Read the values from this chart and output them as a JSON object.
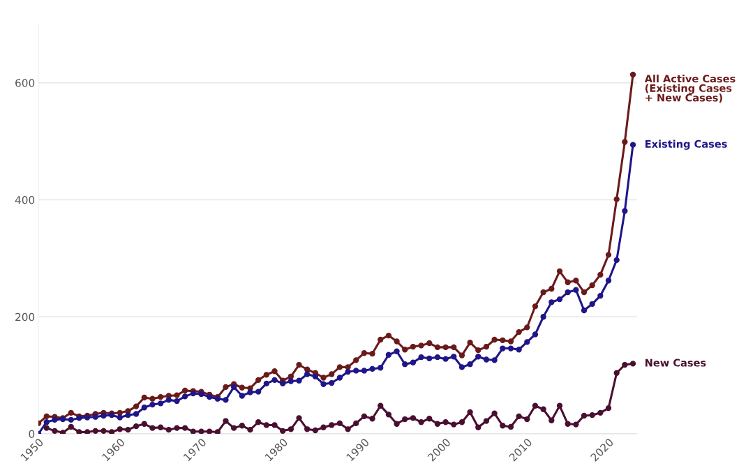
{
  "chart_data": {
    "type": "line",
    "x": [
      1950,
      1951,
      1952,
      1953,
      1954,
      1955,
      1956,
      1957,
      1958,
      1959,
      1960,
      1961,
      1962,
      1963,
      1964,
      1965,
      1966,
      1967,
      1968,
      1969,
      1970,
      1971,
      1972,
      1973,
      1974,
      1975,
      1976,
      1977,
      1978,
      1979,
      1980,
      1981,
      1982,
      1983,
      1984,
      1985,
      1986,
      1987,
      1988,
      1989,
      1990,
      1991,
      1992,
      1993,
      1994,
      1995,
      1996,
      1997,
      1998,
      1999,
      2000,
      2001,
      2002,
      2003,
      2004,
      2005,
      2006,
      2007,
      2008,
      2009,
      2010,
      2011,
      2012,
      2013,
      2014,
      2015,
      2016,
      2017,
      2018,
      2019,
      2020,
      2021,
      2022,
      2023
    ],
    "series": [
      {
        "name": "All Active Cases\n(Existing Cases\n+ New Cases)",
        "color": "#6b1a1a",
        "values": [
          18,
          30,
          29,
          27,
          36,
          30,
          31,
          34,
          36,
          35,
          36,
          39,
          47,
          62,
          60,
          63,
          65,
          66,
          74,
          73,
          72,
          67,
          63,
          80,
          85,
          79,
          78,
          92,
          101,
          107,
          91,
          98,
          118,
          110,
          104,
          96,
          102,
          114,
          114,
          126,
          138,
          137,
          161,
          168,
          158,
          144,
          149,
          151,
          155,
          148,
          148,
          148,
          134,
          156,
          143,
          149,
          161,
          160,
          158,
          174,
          182,
          218,
          242,
          248,
          278,
          259,
          262,
          242,
          254,
          272,
          306,
          401,
          499,
          614
        ]
      },
      {
        "name": "Existing Cases",
        "color": "#1f1689",
        "values": [
          0,
          20,
          24,
          25,
          24,
          27,
          28,
          29,
          31,
          32,
          28,
          32,
          34,
          45,
          50,
          52,
          58,
          56,
          64,
          69,
          68,
          63,
          60,
          58,
          80,
          65,
          71,
          72,
          86,
          92,
          86,
          90,
          91,
          102,
          98,
          85,
          87,
          96,
          106,
          108,
          108,
          111,
          113,
          135,
          141,
          119,
          122,
          131,
          129,
          131,
          128,
          132,
          114,
          119,
          132,
          127,
          126,
          146,
          146,
          144,
          157,
          170,
          200,
          225,
          230,
          242,
          246,
          211,
          222,
          236,
          262,
          297,
          381,
          494
        ]
      },
      {
        "name": "New Cases",
        "color": "#4a0f30",
        "values": [
          null,
          10,
          5,
          2,
          12,
          3,
          3,
          5,
          5,
          3,
          8,
          7,
          13,
          17,
          10,
          11,
          7,
          10,
          10,
          4,
          4,
          4,
          3,
          22,
          10,
          14,
          7,
          20,
          15,
          15,
          5,
          8,
          27,
          8,
          6,
          11,
          15,
          18,
          8,
          18,
          30,
          26,
          48,
          33,
          17,
          25,
          27,
          20,
          26,
          17,
          20,
          16,
          20,
          37,
          11,
          22,
          35,
          14,
          12,
          30,
          25,
          48,
          42,
          23,
          48,
          17,
          16,
          31,
          32,
          36,
          44,
          104,
          118,
          120
        ]
      }
    ],
    "xlim": [
      1950,
      2023.5
    ],
    "xticks": [
      1950,
      1960,
      1970,
      1980,
      1990,
      2000,
      2010,
      2020
    ],
    "ylim": [
      0,
      700
    ],
    "yticks": [
      0,
      200,
      400,
      600
    ],
    "grid": "y",
    "marker": "circle",
    "line_style": "solid",
    "legend": false
  }
}
